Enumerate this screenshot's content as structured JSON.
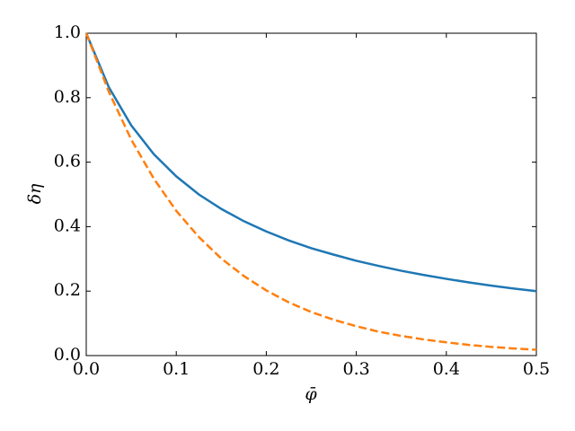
{
  "chart_data": {
    "type": "line",
    "xlabel": "φ̄",
    "ylabel": "δη",
    "x": [
      0,
      0.025,
      0.05,
      0.075,
      0.1,
      0.125,
      0.15,
      0.175,
      0.2,
      0.225,
      0.25,
      0.275,
      0.3,
      0.325,
      0.35,
      0.375,
      0.4,
      0.425,
      0.45,
      0.475,
      0.5
    ],
    "series": [
      {
        "color": "#1f77b4",
        "linestyle": "solid",
        "values": [
          1,
          0.833,
          0.714,
          0.625,
          0.556,
          0.5,
          0.455,
          0.417,
          0.385,
          0.357,
          0.333,
          0.313,
          0.294,
          0.278,
          0.263,
          0.25,
          0.238,
          0.227,
          0.217,
          0.208,
          0.2
        ]
      },
      {
        "color": "#ff7f0e",
        "linestyle": "dashed",
        "values": [
          1,
          0.819,
          0.67,
          0.549,
          0.449,
          0.368,
          0.301,
          0.247,
          0.202,
          0.165,
          0.135,
          0.111,
          0.091,
          0.074,
          0.061,
          0.05,
          0.041,
          0.033,
          0.027,
          0.022,
          0.018
        ]
      }
    ],
    "xlim": [
      0,
      0.5
    ],
    "ylim": [
      0,
      1
    ],
    "xticks": [
      {
        "value": 0,
        "label": "0.0"
      },
      0.1,
      0.2,
      0.3,
      0.4,
      0.5
    ],
    "yticks": [
      {
        "value": 0,
        "label": "0.0"
      },
      0.2,
      0.4,
      0.6,
      0.8,
      {
        "value": 1,
        "label": "1.0"
      }
    ],
    "grid": false
  }
}
